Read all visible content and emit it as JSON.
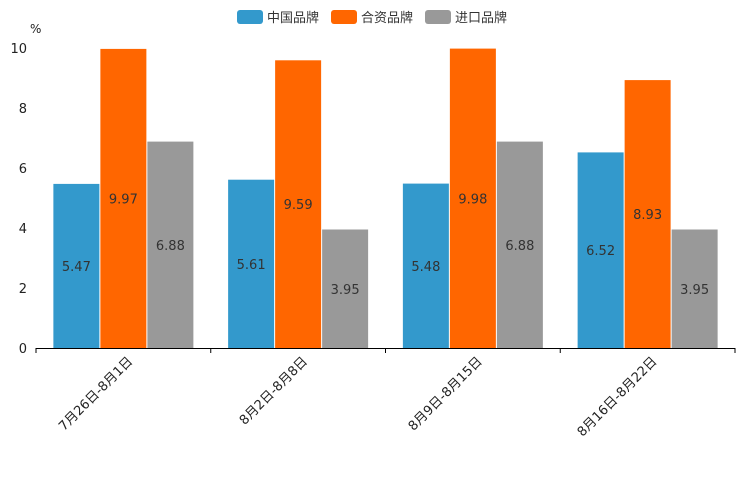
{
  "chart_data": {
    "type": "bar",
    "unit_label": "%",
    "categories": [
      "7月26日-8月1日",
      "8月2日-8月8日",
      "8月9日-8月15日",
      "8月16日-8月22日"
    ],
    "series": [
      {
        "name": "中国品牌",
        "color": "#3399cc",
        "values": [
          5.47,
          5.61,
          5.48,
          6.52
        ]
      },
      {
        "name": "合资品牌",
        "color": "#ff6600",
        "values": [
          9.97,
          9.59,
          9.98,
          8.93
        ]
      },
      {
        "name": "进口品牌",
        "color": "#999999",
        "values": [
          6.88,
          3.95,
          6.88,
          3.95
        ]
      }
    ],
    "yticks": [
      0,
      2,
      4,
      6,
      8,
      10
    ],
    "ylim": [
      0,
      10
    ],
    "legend_position": "top-center",
    "grid": false
  }
}
